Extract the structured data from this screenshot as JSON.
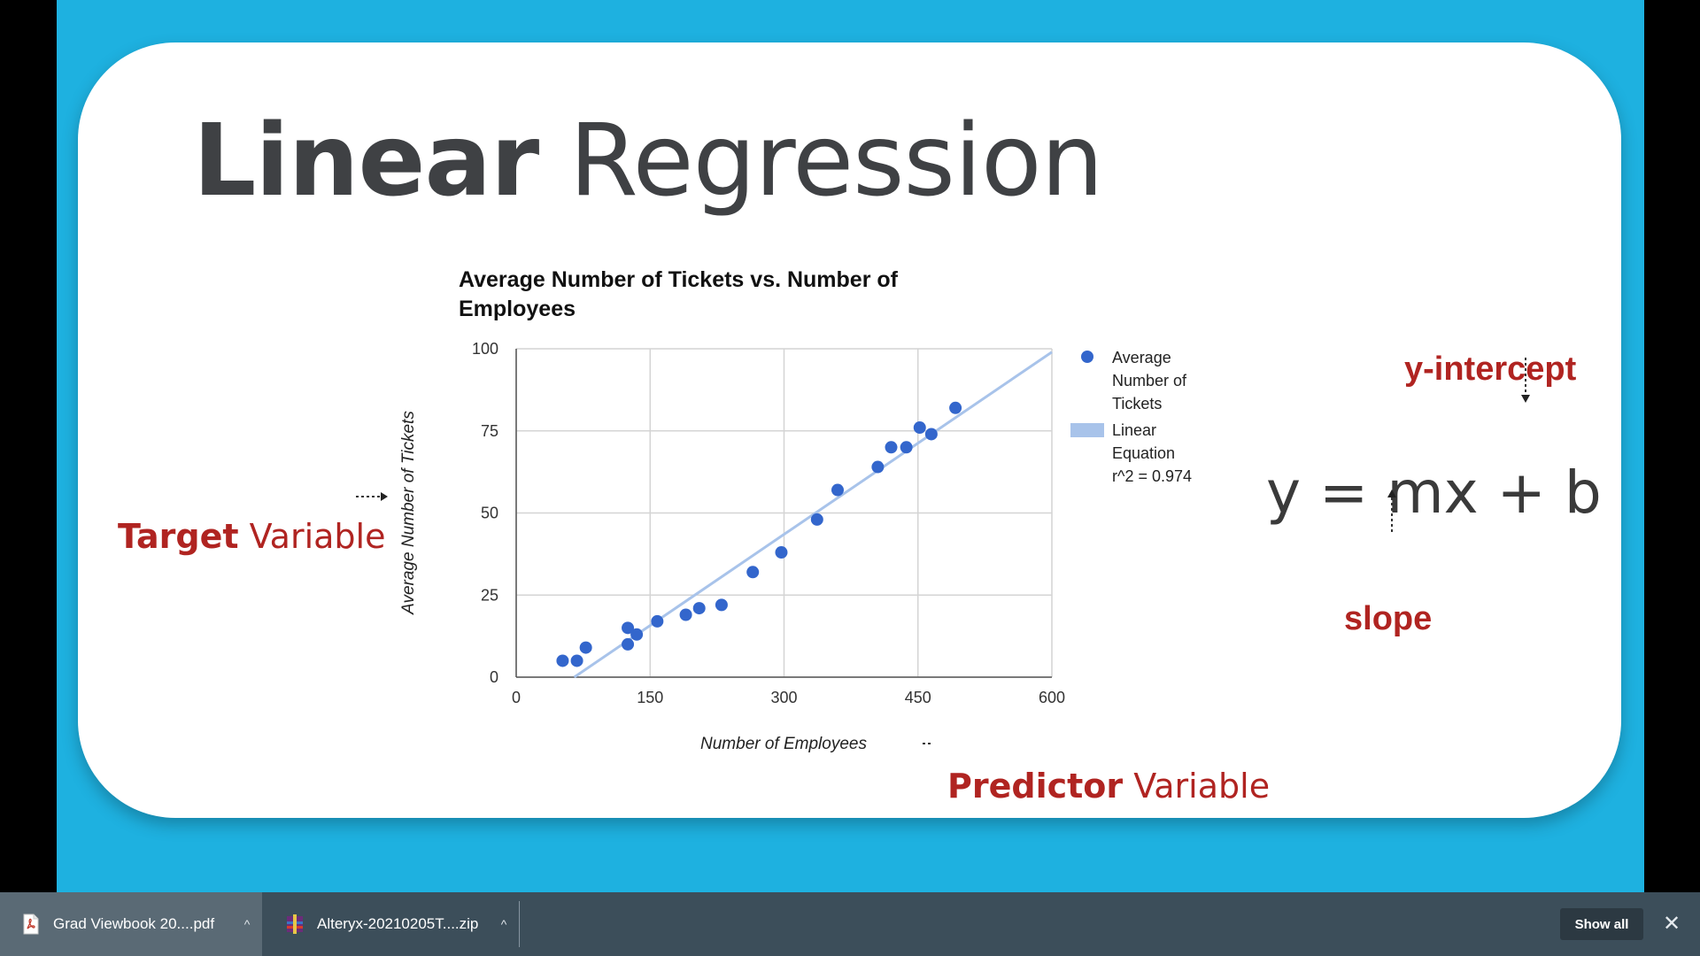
{
  "slide": {
    "title_bold": "Linear",
    "title_rest": " Regression",
    "target_label": {
      "strong": "Target",
      "rest": " Variable"
    },
    "predictor_label": {
      "strong": "Predictor",
      "rest": " Variable"
    },
    "equation": "y = mx + b",
    "yintercept_label": "y-intercept",
    "slope_label": "slope",
    "accent_color": "#b02421",
    "background_color": "#1eb1e0"
  },
  "chart_data": {
    "type": "scatter",
    "title": "Average Number of Tickets vs. Number of Employees",
    "xlabel": "Number of Employees",
    "ylabel": "Average Number of Tickets",
    "xlim": [
      0,
      600
    ],
    "ylim": [
      0,
      100
    ],
    "x_ticks": [
      0,
      150,
      300,
      450,
      600
    ],
    "y_ticks": [
      0,
      25,
      50,
      75,
      100
    ],
    "grid": true,
    "legend_position": "right",
    "series": [
      {
        "name": "Average Number of Tickets",
        "legend_lines": [
          "Average",
          "Number of",
          "Tickets"
        ],
        "color": "#3366cc",
        "points": [
          [
            52,
            5
          ],
          [
            68,
            5
          ],
          [
            78,
            9
          ],
          [
            125,
            15
          ],
          [
            125,
            10
          ],
          [
            135,
            13
          ],
          [
            158,
            17
          ],
          [
            190,
            19
          ],
          [
            205,
            21
          ],
          [
            230,
            22
          ],
          [
            265,
            32
          ],
          [
            297,
            38
          ],
          [
            337,
            48
          ],
          [
            360,
            57
          ],
          [
            405,
            64
          ],
          [
            420,
            70
          ],
          [
            437,
            70
          ],
          [
            452,
            76
          ],
          [
            465,
            74
          ],
          [
            492,
            82
          ]
        ]
      }
    ],
    "trendline": {
      "name": "Linear Equation",
      "legend_lines": [
        "Linear",
        "Equation",
        "r^2 = 0.974"
      ],
      "color": "#a8c3ea",
      "x_range": [
        65,
        600
      ],
      "y_range": [
        0,
        99
      ]
    }
  },
  "download_bar": {
    "items": [
      {
        "name": "Grad Viewbook 20....pdf",
        "icon": "pdf-file-icon"
      },
      {
        "name": "Alteryx-20210205T....zip",
        "icon": "zip-archive-icon"
      }
    ],
    "show_all_label": "Show all",
    "close_symbol": "✕",
    "chevron_symbol": "^"
  }
}
